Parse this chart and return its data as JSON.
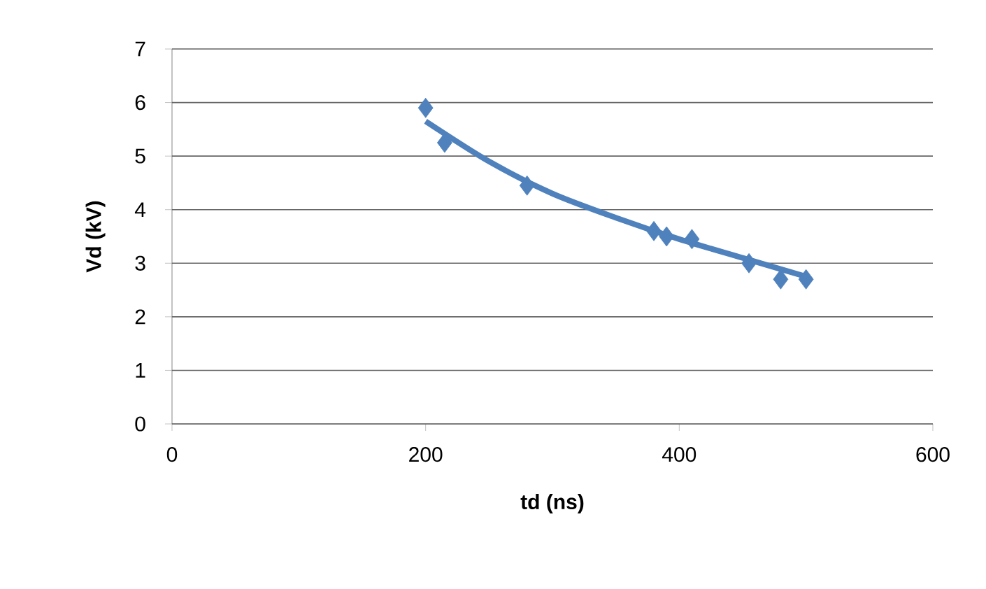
{
  "chart_data": {
    "type": "scatter",
    "xlabel": "td (ns)",
    "ylabel": "Vd (kV)",
    "xlim": [
      0,
      600
    ],
    "xticks": [
      0,
      200,
      400,
      600
    ],
    "ylim": [
      0,
      7
    ],
    "yticks": [
      0,
      1,
      2,
      3,
      4,
      5,
      6,
      7
    ],
    "grid": "y",
    "series": [
      {
        "color": "#4f81bd",
        "marker": "diamond",
        "x": [
          200,
          215,
          280,
          380,
          390,
          410,
          455,
          480,
          500
        ],
        "values": [
          5.9,
          5.25,
          4.45,
          3.6,
          3.5,
          3.45,
          3.0,
          2.7,
          2.7
        ]
      },
      {
        "type": "line",
        "color": "#4f81bd",
        "x": [
          200,
          250,
          300,
          350,
          400,
          450,
          500
        ],
        "values": [
          5.65,
          4.9,
          4.3,
          3.85,
          3.45,
          3.1,
          2.75
        ]
      }
    ]
  }
}
